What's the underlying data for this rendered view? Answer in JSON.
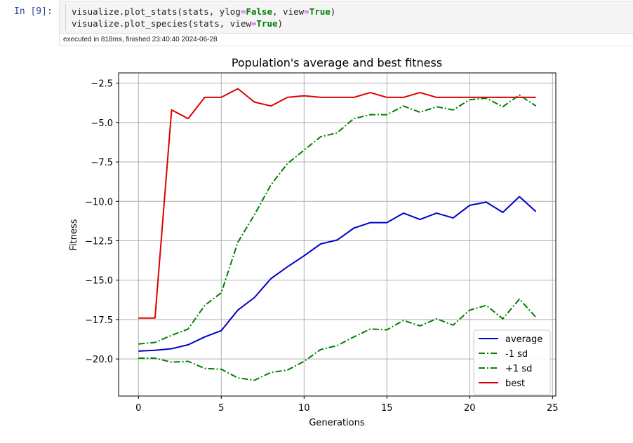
{
  "cell": {
    "prompt": "In [9]:",
    "code_lines": [
      [
        {
          "t": "visualize.plot_stats(stats, ylog",
          "c": ""
        },
        {
          "t": "=",
          "c": "op"
        },
        {
          "t": "False",
          "c": "kw"
        },
        {
          "t": ", view",
          "c": ""
        },
        {
          "t": "=",
          "c": "op"
        },
        {
          "t": "True",
          "c": "kw"
        },
        {
          "t": ")",
          "c": ""
        }
      ],
      [
        {
          "t": "visualize.plot_species(stats, view",
          "c": ""
        },
        {
          "t": "=",
          "c": "op"
        },
        {
          "t": "True",
          "c": "kw"
        },
        {
          "t": ")",
          "c": ""
        }
      ]
    ],
    "execution_info": "executed in 818ms, finished 23:40:40 2024-06-28"
  },
  "chart_data": {
    "type": "line",
    "title": "Population's average and best fitness",
    "xlabel": "Generations",
    "ylabel": "Fitness",
    "xlim": [
      -1.2,
      25.2
    ],
    "ylim": [
      -22.35,
      -1.85
    ],
    "xticks": [
      0,
      5,
      10,
      15,
      20,
      25
    ],
    "yticks": [
      -2.5,
      -5.0,
      -7.5,
      -10.0,
      -12.5,
      -15.0,
      -17.5,
      -20.0
    ],
    "xtick_labels": [
      "0",
      "5",
      "10",
      "15",
      "20",
      "25"
    ],
    "ytick_labels": [
      "−2.5",
      "−5.0",
      "−7.5",
      "−10.0",
      "−12.5",
      "−15.0",
      "−17.5",
      "−20.0"
    ],
    "grid": true,
    "legend_position": "lower-right",
    "x": [
      0,
      1,
      2,
      3,
      4,
      5,
      6,
      7,
      8,
      9,
      10,
      11,
      12,
      13,
      14,
      15,
      16,
      17,
      18,
      19,
      20,
      21,
      22,
      23,
      24
    ],
    "series": [
      {
        "name": "average",
        "color": "#0000cc",
        "style": "solid",
        "values": [
          -19.5,
          -19.45,
          -19.35,
          -19.1,
          -18.6,
          -18.2,
          -16.9,
          -16.1,
          -14.9,
          -14.15,
          -13.45,
          -12.7,
          -12.45,
          -11.7,
          -11.35,
          -11.35,
          -10.75,
          -11.15,
          -10.75,
          -11.05,
          -10.25,
          -10.05,
          -10.7,
          -9.7,
          -10.65
        ]
      },
      {
        "name": "-1 sd",
        "color": "#008000",
        "style": "dashdot",
        "values": [
          -19.95,
          -19.95,
          -20.2,
          -20.15,
          -20.6,
          -20.65,
          -21.2,
          -21.35,
          -20.85,
          -20.7,
          -20.15,
          -19.4,
          -19.15,
          -18.6,
          -18.1,
          -18.15,
          -17.55,
          -17.9,
          -17.45,
          -17.85,
          -16.9,
          -16.6,
          -17.45,
          -16.2,
          -17.35
        ]
      },
      {
        "name": "+1 sd",
        "color": "#008000",
        "style": "dashdot",
        "values": [
          -19.05,
          -18.95,
          -18.5,
          -18.1,
          -16.6,
          -15.8,
          -12.6,
          -10.85,
          -8.95,
          -7.6,
          -6.75,
          -5.9,
          -5.65,
          -4.75,
          -4.5,
          -4.5,
          -3.95,
          -4.35,
          -4.0,
          -4.2,
          -3.55,
          -3.45,
          -4.0,
          -3.25,
          -3.95
        ]
      },
      {
        "name": "best",
        "color": "#dd0000",
        "style": "solid",
        "values": [
          -17.4,
          -17.4,
          -4.2,
          -4.75,
          -3.4,
          -3.4,
          -2.85,
          -3.7,
          -3.95,
          -3.4,
          -3.3,
          -3.4,
          -3.4,
          -3.4,
          -3.1,
          -3.4,
          -3.4,
          -3.1,
          -3.4,
          -3.4,
          -3.4,
          -3.4,
          -3.4,
          -3.4,
          -3.4
        ]
      }
    ]
  }
}
